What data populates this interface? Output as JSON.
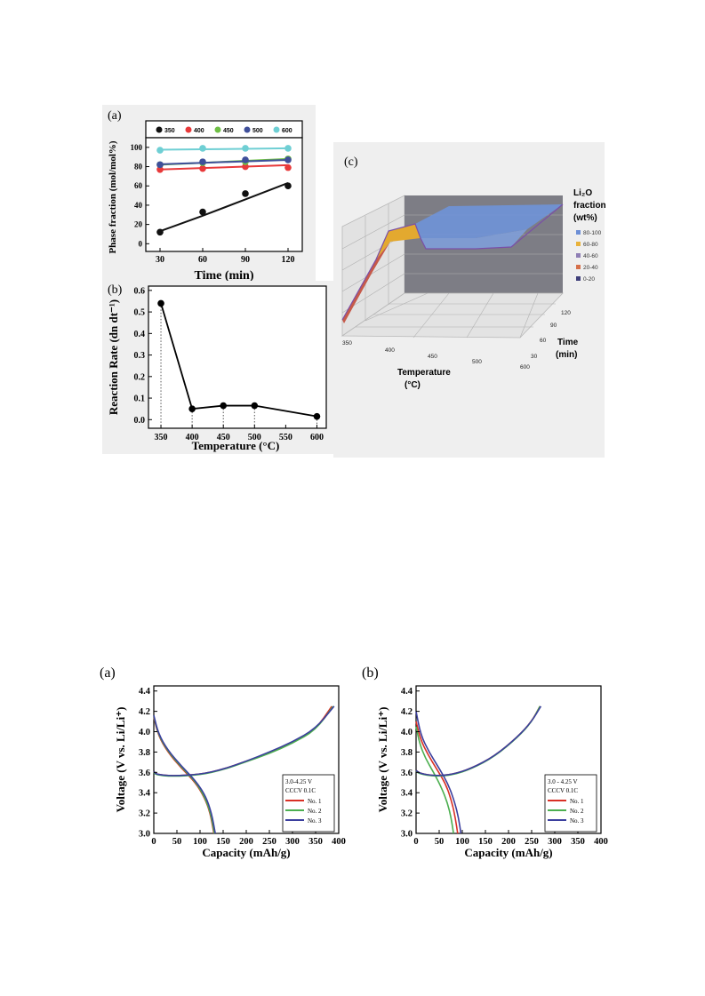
{
  "figure1": {
    "panel_a": {
      "label": "(a)",
      "legend": [
        "350",
        "400",
        "450",
        "500",
        "600"
      ],
      "colors": [
        "#111111",
        "#e8393a",
        "#6fbf45",
        "#3f4f9a",
        "#6fcfd4"
      ]
    },
    "panel_b": {
      "label": "(b)"
    },
    "panel_c": {
      "label": "(c)",
      "legend_title_1": "Li₂O",
      "legend_title_2": "fraction",
      "legend_title_3": "(wt%)",
      "legend_items": [
        "80-100",
        "60-80",
        "40-60",
        "20-40",
        "0-20"
      ],
      "legend_colors": [
        "#6d8fd6",
        "#e9b23a",
        "#8f7fb5",
        "#d6704a",
        "#3f3f7a"
      ],
      "x_ticks": [
        "350",
        "400",
        "450",
        "500",
        "600"
      ],
      "y_ticks": [
        "30",
        "60",
        "90",
        "120"
      ],
      "xlabel_1": "Temperature",
      "xlabel_2": "(°C)",
      "ylabel_1": "Time",
      "ylabel_2": "(min)"
    }
  },
  "chart_data": [
    {
      "type": "scatter",
      "panel": "Figure 1 (a)",
      "xlabel": "Time (min)",
      "ylabel": "Phase fraction (mol/mol%)",
      "x_ticks": [
        "30",
        "60",
        "90",
        "120"
      ],
      "y_ticks": [
        "0",
        "20",
        "40",
        "60",
        "80",
        "100"
      ],
      "xlim": [
        20,
        130
      ],
      "ylim": [
        -8,
        110
      ],
      "legend_position": "top",
      "x": [
        30,
        60,
        90,
        120
      ],
      "series": [
        {
          "name": "350",
          "values": [
            12,
            33,
            52,
            60
          ],
          "fit": [
            13,
            29,
            46,
            63
          ]
        },
        {
          "name": "400",
          "values": [
            77,
            78,
            80,
            79
          ],
          "fit": [
            77,
            78.5,
            80,
            81.5
          ]
        },
        {
          "name": "450",
          "values": [
            82,
            84,
            85,
            88
          ],
          "fit": [
            82,
            84,
            86,
            88
          ]
        },
        {
          "name": "500",
          "values": [
            82,
            85,
            87,
            87
          ],
          "fit": [
            82.5,
            84,
            85.5,
            87
          ]
        },
        {
          "name": "600",
          "values": [
            97,
            99,
            99,
            99
          ],
          "fit": [
            97.5,
            98,
            98.5,
            99
          ]
        }
      ]
    },
    {
      "type": "line",
      "panel": "Figure 1 (b)",
      "xlabel": "Temperature (°C)",
      "ylabel": "Reaction Rate (dn dt⁻¹)",
      "x_ticks": [
        "350",
        "400",
        "450",
        "500",
        "550",
        "600"
      ],
      "y_ticks": [
        "0.0",
        "0.1",
        "0.2",
        "0.3",
        "0.4",
        "0.5",
        "0.6"
      ],
      "xlim": [
        330,
        615
      ],
      "ylim": [
        -0.04,
        0.62
      ],
      "x": [
        350,
        400,
        450,
        500,
        600
      ],
      "values": [
        0.54,
        0.05,
        0.065,
        0.065,
        0.015
      ]
    },
    {
      "type": "line",
      "panel": "Figure 2 (a)",
      "label": "(a)",
      "xlabel": "Capacity (mAh/g)",
      "ylabel": "Voltage (V vs. Li/Li⁺)",
      "x_ticks": [
        "0",
        "50",
        "100",
        "150",
        "200",
        "250",
        "300",
        "350",
        "400"
      ],
      "y_ticks": [
        "3.0",
        "3.2",
        "3.4",
        "3.6",
        "3.8",
        "4.0",
        "4.2",
        "4.4"
      ],
      "xlim": [
        0,
        400
      ],
      "ylim": [
        3.0,
        4.45
      ],
      "legend_lines": [
        "3.0-4.25 V",
        "CCCV 0.1C"
      ],
      "legend_position": "bottom-right",
      "series": [
        {
          "name": "No. 1",
          "color": "#d93025",
          "charge": [
            [
              0,
              3.61
            ],
            [
              5,
              3.58
            ],
            [
              40,
              3.565
            ],
            [
              100,
              3.58
            ],
            [
              150,
              3.63
            ],
            [
              200,
              3.71
            ],
            [
              250,
              3.79
            ],
            [
              300,
              3.89
            ],
            [
              350,
              4.02
            ],
            [
              385,
              4.25
            ]
          ],
          "discharge": [
            [
              0,
              4.14
            ],
            [
              10,
              3.96
            ],
            [
              30,
              3.8
            ],
            [
              60,
              3.64
            ],
            [
              90,
              3.5
            ],
            [
              110,
              3.35
            ],
            [
              122,
              3.2
            ],
            [
              130,
              3.0
            ]
          ]
        },
        {
          "name": "No. 2",
          "color": "#4caf50",
          "charge": [
            [
              0,
              3.6
            ],
            [
              5,
              3.575
            ],
            [
              40,
              3.56
            ],
            [
              100,
              3.575
            ],
            [
              150,
              3.625
            ],
            [
              200,
              3.705
            ],
            [
              250,
              3.785
            ],
            [
              300,
              3.885
            ],
            [
              350,
              4.015
            ],
            [
              388,
              4.25
            ]
          ],
          "discharge": [
            [
              0,
              4.15
            ],
            [
              10,
              3.97
            ],
            [
              30,
              3.81
            ],
            [
              60,
              3.65
            ],
            [
              90,
              3.51
            ],
            [
              110,
              3.36
            ],
            [
              123,
              3.2
            ],
            [
              131,
              3.0
            ]
          ]
        },
        {
          "name": "No. 3",
          "color": "#3b3f9e",
          "charge": [
            [
              0,
              3.61
            ],
            [
              5,
              3.58
            ],
            [
              40,
              3.565
            ],
            [
              100,
              3.58
            ],
            [
              150,
              3.63
            ],
            [
              200,
              3.71
            ],
            [
              250,
              3.8
            ],
            [
              300,
              3.9
            ],
            [
              350,
              4.03
            ],
            [
              390,
              4.25
            ]
          ],
          "discharge": [
            [
              0,
              4.16
            ],
            [
              10,
              3.98
            ],
            [
              30,
              3.82
            ],
            [
              60,
              3.66
            ],
            [
              90,
              3.52
            ],
            [
              112,
              3.37
            ],
            [
              125,
              3.2
            ],
            [
              133,
              3.0
            ]
          ]
        }
      ]
    },
    {
      "type": "line",
      "panel": "Figure 2 (b)",
      "label": "(b)",
      "xlabel": "Capacity (mAh/g)",
      "ylabel": "Voltage (V vs. Li/Li⁺)",
      "x_ticks": [
        "0",
        "50",
        "100",
        "150",
        "200",
        "250",
        "300",
        "350",
        "400"
      ],
      "y_ticks": [
        "3.0",
        "3.2",
        "3.4",
        "3.6",
        "3.8",
        "4.0",
        "4.2",
        "4.4"
      ],
      "xlim": [
        0,
        400
      ],
      "ylim": [
        3.0,
        4.45
      ],
      "legend_lines": [
        "3.0 - 4.25 V",
        "CCCV 0.1C"
      ],
      "legend_position": "bottom-right",
      "series": [
        {
          "name": "No. 1",
          "color": "#d93025",
          "charge": [
            [
              0,
              3.62
            ],
            [
              8,
              3.59
            ],
            [
              40,
              3.565
            ],
            [
              80,
              3.58
            ],
            [
              120,
              3.64
            ],
            [
              170,
              3.76
            ],
            [
              220,
              3.95
            ],
            [
              250,
              4.1
            ],
            [
              268,
              4.25
            ]
          ],
          "discharge": [
            [
              0,
              4.1
            ],
            [
              10,
              3.92
            ],
            [
              25,
              3.78
            ],
            [
              45,
              3.63
            ],
            [
              65,
              3.48
            ],
            [
              78,
              3.3
            ],
            [
              85,
              3.15
            ],
            [
              90,
              3.0
            ]
          ]
        },
        {
          "name": "No. 2",
          "color": "#4caf50",
          "charge": [
            [
              0,
              3.61
            ],
            [
              8,
              3.585
            ],
            [
              40,
              3.56
            ],
            [
              80,
              3.575
            ],
            [
              120,
              3.635
            ],
            [
              170,
              3.755
            ],
            [
              220,
              3.945
            ],
            [
              250,
              4.095
            ],
            [
              268,
              4.25
            ]
          ],
          "discharge": [
            [
              0,
              4.05
            ],
            [
              8,
              3.88
            ],
            [
              20,
              3.74
            ],
            [
              38,
              3.6
            ],
            [
              55,
              3.45
            ],
            [
              68,
              3.3
            ],
            [
              76,
              3.15
            ],
            [
              81,
              3.0
            ]
          ]
        },
        {
          "name": "No. 3",
          "color": "#3b3f9e",
          "charge": [
            [
              0,
              3.62
            ],
            [
              8,
              3.59
            ],
            [
              40,
              3.565
            ],
            [
              80,
              3.58
            ],
            [
              120,
              3.64
            ],
            [
              170,
              3.76
            ],
            [
              220,
              3.95
            ],
            [
              250,
              4.1
            ],
            [
              270,
              4.25
            ]
          ],
          "discharge": [
            [
              0,
              4.2
            ],
            [
              10,
              3.97
            ],
            [
              28,
              3.8
            ],
            [
              50,
              3.64
            ],
            [
              70,
              3.48
            ],
            [
              84,
              3.3
            ],
            [
              92,
              3.15
            ],
            [
              97,
              3.0
            ]
          ]
        }
      ]
    }
  ]
}
